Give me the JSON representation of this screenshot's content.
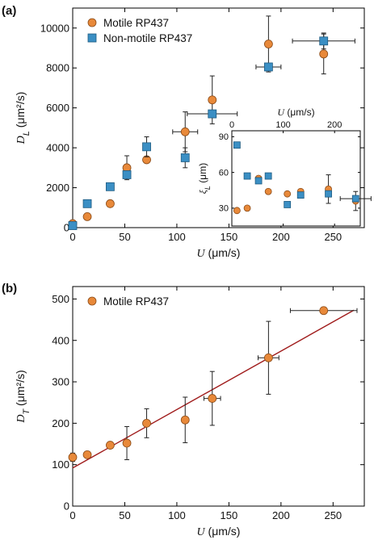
{
  "chart_data": [
    {
      "panel": "(a)",
      "type": "scatter",
      "xlabel_sym": "U",
      "xlabel_unit": " (μm/s)",
      "ylabel_sym": "D",
      "ylabel_sub": "L",
      "ylabel_unit": " (μm²/s)",
      "xlim": [
        0,
        280
      ],
      "ylim": [
        0,
        11000
      ],
      "xticks": [
        0,
        50,
        100,
        150,
        200,
        250
      ],
      "yticks": [
        0,
        2000,
        4000,
        6000,
        8000,
        10000
      ],
      "legend": "top-left",
      "series": [
        {
          "name": "Motile RP437",
          "color": "#e8893a",
          "marker": "circle",
          "points": [
            {
              "x": 0,
              "y": 200,
              "xerr": 0,
              "yerr": 0
            },
            {
              "x": 14,
              "y": 550,
              "xerr": 0,
              "yerr": 0
            },
            {
              "x": 36,
              "y": 1200,
              "xerr": 0,
              "yerr": 0
            },
            {
              "x": 52,
              "y": 3000,
              "xerr": 0,
              "yerr": 600
            },
            {
              "x": 71,
              "y": 3400,
              "xerr": 0,
              "yerr": 0
            },
            {
              "x": 108,
              "y": 4800,
              "xerr": 12,
              "yerr": 1000
            },
            {
              "x": 134,
              "y": 6400,
              "xerr": 0,
              "yerr": 1200
            },
            {
              "x": 188,
              "y": 9200,
              "xerr": 0,
              "yerr": 1400
            },
            {
              "x": 241,
              "y": 8700,
              "xerr": 0,
              "yerr": 1000
            }
          ]
        },
        {
          "name": "Non-motile RP437",
          "color": "#3b8fc4",
          "marker": "square",
          "points": [
            {
              "x": 0,
              "y": 100,
              "xerr": 0,
              "yerr": 0
            },
            {
              "x": 14,
              "y": 1200,
              "xerr": 0,
              "yerr": 0
            },
            {
              "x": 36,
              "y": 2050,
              "xerr": 0,
              "yerr": 0
            },
            {
              "x": 52,
              "y": 2650,
              "xerr": 0,
              "yerr": 0
            },
            {
              "x": 71,
              "y": 4050,
              "xerr": 0,
              "yerr": 500
            },
            {
              "x": 108,
              "y": 3500,
              "xerr": 0,
              "yerr": 500
            },
            {
              "x": 134,
              "y": 5700,
              "xerr": 24,
              "yerr": 0
            },
            {
              "x": 188,
              "y": 8050,
              "xerr": 12,
              "yerr": 0
            },
            {
              "x": 241,
              "y": 9350,
              "xerr": 30,
              "yerr": 400
            }
          ]
        }
      ]
    },
    {
      "panel": "inset",
      "type": "scatter",
      "xlabel_sym": "U",
      "xlabel_unit": " (μm/s)",
      "ylabel_sym": "ξ",
      "ylabel_sub": "L",
      "ylabel_unit": " (μm)",
      "xlim": [
        0,
        250
      ],
      "ylim": [
        15,
        95
      ],
      "xticks": [
        0,
        100,
        200
      ],
      "yticks": [
        30,
        60,
        90
      ],
      "series": [
        {
          "name": "Motile RP437",
          "color": "#e8893a",
          "marker": "circle",
          "points": [
            {
              "x": 10,
              "y": 28,
              "xerr": 0,
              "yerr": 0
            },
            {
              "x": 30,
              "y": 30,
              "xerr": 0,
              "yerr": 0
            },
            {
              "x": 52,
              "y": 55,
              "xerr": 0,
              "yerr": 0
            },
            {
              "x": 71,
              "y": 44,
              "xerr": 0,
              "yerr": 0
            },
            {
              "x": 108,
              "y": 42,
              "xerr": 0,
              "yerr": 0
            },
            {
              "x": 134,
              "y": 44,
              "xerr": 0,
              "yerr": 0
            },
            {
              "x": 188,
              "y": 46,
              "xerr": 0,
              "yerr": 12
            },
            {
              "x": 241,
              "y": 36,
              "xerr": 0,
              "yerr": 8
            }
          ]
        },
        {
          "name": "Non-motile RP437",
          "color": "#3b8fc4",
          "marker": "square",
          "points": [
            {
              "x": 10,
              "y": 83,
              "xerr": 0,
              "yerr": 0
            },
            {
              "x": 30,
              "y": 57,
              "xerr": 0,
              "yerr": 0
            },
            {
              "x": 52,
              "y": 53,
              "xerr": 0,
              "yerr": 0
            },
            {
              "x": 71,
              "y": 57,
              "xerr": 0,
              "yerr": 0
            },
            {
              "x": 108,
              "y": 33,
              "xerr": 0,
              "yerr": 0
            },
            {
              "x": 134,
              "y": 41,
              "xerr": 0,
              "yerr": 0
            },
            {
              "x": 188,
              "y": 42,
              "xerr": 0,
              "yerr": 0
            },
            {
              "x": 241,
              "y": 38,
              "xerr": 30,
              "yerr": 0
            }
          ]
        }
      ]
    },
    {
      "panel": "(b)",
      "type": "scatter",
      "xlabel_sym": "U",
      "xlabel_unit": " (μm/s)",
      "ylabel_sym": "D",
      "ylabel_sub": "T",
      "ylabel_unit": " (μm²/s)",
      "xlim": [
        0,
        280
      ],
      "ylim": [
        0,
        530
      ],
      "xticks": [
        0,
        50,
        100,
        150,
        200,
        250
      ],
      "yticks": [
        0,
        100,
        200,
        300,
        400,
        500
      ],
      "legend": "top-left",
      "fit_line": {
        "x": [
          0,
          270
        ],
        "y": [
          92,
          473
        ],
        "color": "#a01c1c"
      },
      "series": [
        {
          "name": "Motile RP437",
          "color": "#e8893a",
          "marker": "circle",
          "points": [
            {
              "x": 0,
              "y": 118,
              "xerr": 0,
              "yerr": 10
            },
            {
              "x": 14,
              "y": 124,
              "xerr": 0,
              "yerr": 0
            },
            {
              "x": 36,
              "y": 147,
              "xerr": 0,
              "yerr": 0
            },
            {
              "x": 52,
              "y": 152,
              "xerr": 0,
              "yerr": 40
            },
            {
              "x": 71,
              "y": 200,
              "xerr": 0,
              "yerr": 35
            },
            {
              "x": 108,
              "y": 208,
              "xerr": 0,
              "yerr": 55
            },
            {
              "x": 134,
              "y": 260,
              "xerr": 8,
              "yerr": 65
            },
            {
              "x": 188,
              "y": 358,
              "xerr": 10,
              "yerr": 88
            },
            {
              "x": 241,
              "y": 472,
              "xerr": 32,
              "yerr": 0
            }
          ]
        }
      ]
    }
  ]
}
